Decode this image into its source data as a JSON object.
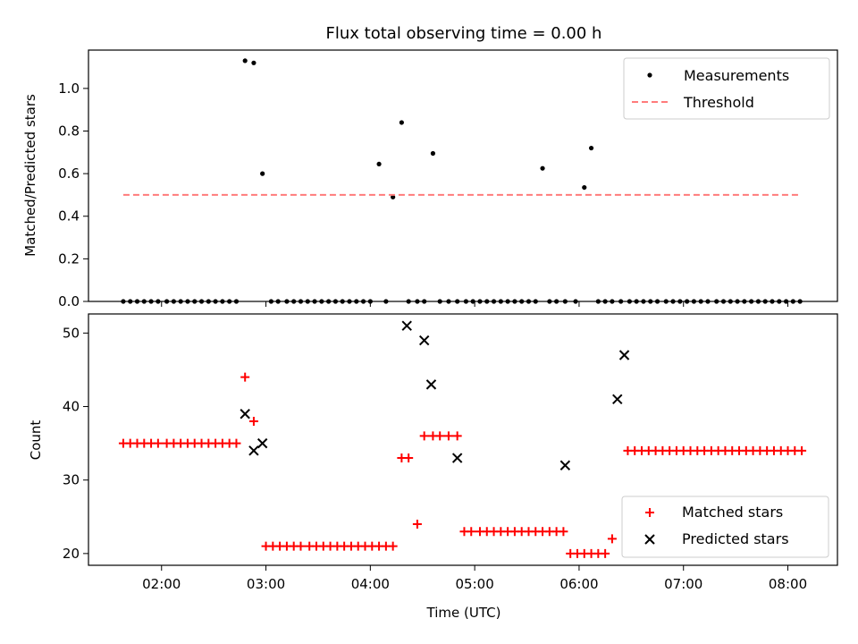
{
  "title": "Flux total observing time = 0.00 h",
  "chart_data": [
    {
      "type": "scatter",
      "ylabel": "Matched/Predicted stars",
      "xlabel": "",
      "ylim": [
        0,
        1.18
      ],
      "yticks": [
        0.0,
        0.2,
        0.4,
        0.6,
        0.8,
        1.0
      ],
      "ytick_labels": [
        "0.0",
        "0.2",
        "0.4",
        "0.6",
        "0.8",
        "1.0"
      ],
      "xticks": [
        "02:00",
        "03:00",
        "04:00",
        "05:00",
        "06:00",
        "07:00",
        "08:00"
      ],
      "legend_position": "top-right",
      "series": [
        {
          "name": "Measurements",
          "marker": "dot",
          "color": "#000000",
          "x": [
            "01:38",
            "01:42",
            "01:46",
            "01:50",
            "01:54",
            "01:58",
            "02:03",
            "02:07",
            "02:11",
            "02:15",
            "02:19",
            "02:23",
            "02:27",
            "02:31",
            "02:35",
            "02:39",
            "02:43",
            "02:48",
            "02:53",
            "02:58",
            "03:03",
            "03:07",
            "03:12",
            "03:16",
            "03:20",
            "03:24",
            "03:28",
            "03:32",
            "03:36",
            "03:40",
            "03:44",
            "03:48",
            "03:52",
            "03:56",
            "04:00",
            "04:05",
            "04:09",
            "04:13",
            "04:18",
            "04:22",
            "04:27",
            "04:31",
            "04:36",
            "04:40",
            "04:45",
            "04:50",
            "04:55",
            "04:59",
            "05:03",
            "05:07",
            "05:11",
            "05:15",
            "05:19",
            "05:23",
            "05:27",
            "05:31",
            "05:35",
            "05:39",
            "05:43",
            "05:47",
            "05:52",
            "05:58",
            "06:03",
            "06:07",
            "06:11",
            "06:15",
            "06:19",
            "06:24",
            "06:29",
            "06:33",
            "06:37",
            "06:41",
            "06:45",
            "06:50",
            "06:54",
            "06:58",
            "07:02",
            "07:06",
            "07:10",
            "07:14",
            "07:19",
            "07:23",
            "07:27",
            "07:31",
            "07:35",
            "07:39",
            "07:43",
            "07:47",
            "07:51",
            "07:55",
            "07:59",
            "08:03",
            "08:07"
          ],
          "y": [
            0,
            0,
            0,
            0,
            0,
            0,
            0,
            0,
            0,
            0,
            0,
            0,
            0,
            0,
            0,
            0,
            0,
            1.13,
            1.12,
            0.6,
            0,
            0,
            0,
            0,
            0,
            0,
            0,
            0,
            0,
            0,
            0,
            0,
            0,
            0,
            0,
            0.645,
            0,
            0.49,
            0.84,
            0,
            0,
            0,
            0.695,
            0,
            0,
            0,
            0,
            0,
            0,
            0,
            0,
            0,
            0,
            0,
            0,
            0,
            0,
            0.625,
            0,
            0,
            0,
            0,
            0.535,
            0.72,
            0,
            0,
            0,
            0,
            0,
            0,
            0,
            0,
            0,
            0,
            0,
            0,
            0,
            0,
            0,
            0,
            0,
            0,
            0,
            0,
            0,
            0,
            0,
            0,
            0,
            0,
            0,
            0,
            0
          ]
        },
        {
          "name": "Threshold",
          "line": "dashed",
          "color": "#ff7b7b",
          "x": [
            "01:38",
            "08:07"
          ],
          "y": [
            0.5,
            0.5
          ]
        }
      ]
    },
    {
      "type": "scatter",
      "ylabel": "Count",
      "xlabel": "Time (UTC)",
      "ylim": [
        18.4,
        52.6
      ],
      "yticks": [
        20,
        30,
        40,
        50
      ],
      "ytick_labels": [
        "20",
        "30",
        "40",
        "50"
      ],
      "xticks": [
        "02:00",
        "03:00",
        "04:00",
        "05:00",
        "06:00",
        "07:00",
        "08:00"
      ],
      "legend_position": "bottom-right",
      "series": [
        {
          "name": "Matched stars",
          "marker": "plus",
          "color": "#ff0000",
          "x": [
            "01:38",
            "01:42",
            "01:46",
            "01:50",
            "01:54",
            "01:58",
            "02:03",
            "02:07",
            "02:11",
            "02:15",
            "02:19",
            "02:23",
            "02:27",
            "02:31",
            "02:35",
            "02:39",
            "02:43",
            "02:48",
            "02:53",
            "03:00",
            "03:04",
            "03:08",
            "03:12",
            "03:16",
            "03:20",
            "03:25",
            "03:29",
            "03:33",
            "03:37",
            "03:41",
            "03:45",
            "03:49",
            "03:53",
            "03:57",
            "04:01",
            "04:05",
            "04:09",
            "04:13",
            "04:18",
            "04:22",
            "04:27",
            "04:31",
            "04:36",
            "04:40",
            "04:45",
            "04:50",
            "04:54",
            "04:58",
            "05:03",
            "05:07",
            "05:11",
            "05:15",
            "05:19",
            "05:23",
            "05:27",
            "05:31",
            "05:35",
            "05:39",
            "05:43",
            "05:47",
            "05:51",
            "05:55",
            "05:59",
            "06:03",
            "06:07",
            "06:11",
            "06:15",
            "06:19",
            "06:28",
            "06:32",
            "06:36",
            "06:40",
            "06:44",
            "06:48",
            "06:52",
            "06:56",
            "07:00",
            "07:04",
            "07:08",
            "07:12",
            "07:16",
            "07:20",
            "07:24",
            "07:28",
            "07:32",
            "07:36",
            "07:40",
            "07:44",
            "07:48",
            "07:52",
            "07:56",
            "08:00",
            "08:04",
            "08:08"
          ],
          "y": [
            35,
            35,
            35,
            35,
            35,
            35,
            35,
            35,
            35,
            35,
            35,
            35,
            35,
            35,
            35,
            35,
            35,
            44,
            38,
            21,
            21,
            21,
            21,
            21,
            21,
            21,
            21,
            21,
            21,
            21,
            21,
            21,
            21,
            21,
            21,
            21,
            21,
            21,
            33,
            33,
            24,
            36,
            36,
            36,
            36,
            36,
            23,
            23,
            23,
            23,
            23,
            23,
            23,
            23,
            23,
            23,
            23,
            23,
            23,
            23,
            23,
            20,
            20,
            20,
            20,
            20,
            20,
            22,
            34,
            34,
            34,
            34,
            34,
            34,
            34,
            34,
            34,
            34,
            34,
            34,
            34,
            34,
            34,
            34,
            34,
            34,
            34,
            34,
            34,
            34,
            34,
            34,
            34,
            34
          ]
        },
        {
          "name": "Predicted stars",
          "marker": "x",
          "color": "#000000",
          "x": [
            "02:48",
            "02:53",
            "02:58",
            "04:21",
            "04:31",
            "04:35",
            "04:50",
            "05:52",
            "06:22",
            "06:26"
          ],
          "y": [
            39,
            34,
            35,
            51,
            49,
            43,
            33,
            32,
            41,
            47
          ]
        }
      ]
    }
  ]
}
